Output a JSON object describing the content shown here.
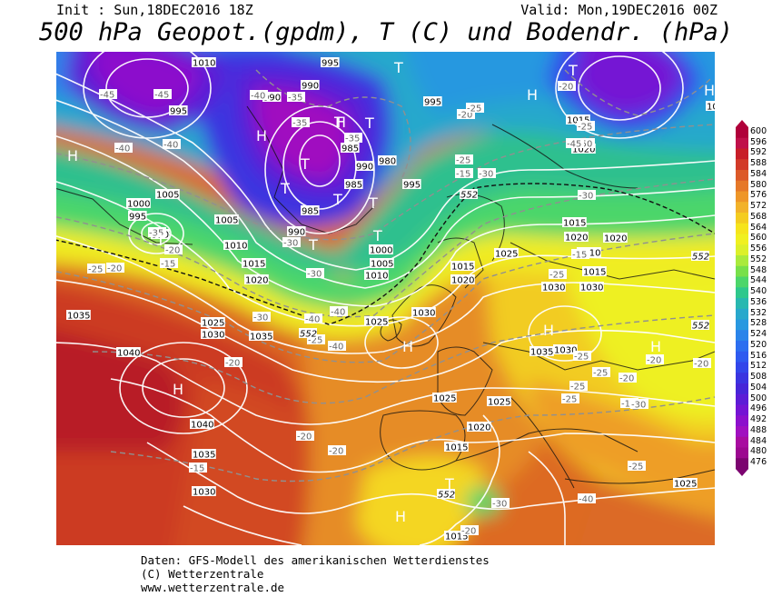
{
  "header": {
    "init": "Init : Sun,18DEC2016 18Z",
    "valid": "Valid: Mon,19DEC2016 00Z",
    "title": "500 hPa Geopot.(gpdm), T (C) und Bodendr. (hPa)"
  },
  "footer": {
    "line1": "Daten: GFS-Modell des amerikanischen Wetterdienstes",
    "line2": "(C) Wetterzentrale",
    "line3": "www.wetterzentrale.de"
  },
  "legend": {
    "values": [
      "600",
      "596",
      "592",
      "588",
      "584",
      "580",
      "576",
      "572",
      "568",
      "564",
      "560",
      "556",
      "552",
      "548",
      "544",
      "540",
      "536",
      "532",
      "528",
      "524",
      "520",
      "516",
      "512",
      "508",
      "504",
      "500",
      "496",
      "492",
      "488",
      "484",
      "480",
      "476"
    ],
    "colors": [
      "#b0003a",
      "#c0104a",
      "#c81e28",
      "#d23a28",
      "#dc5a28",
      "#e67828",
      "#ee9628",
      "#f2b22a",
      "#f4cc20",
      "#f6e41c",
      "#f0f020",
      "#dcf02a",
      "#aaea3c",
      "#78e04a",
      "#4cd66a",
      "#2ec88c",
      "#28b8b0",
      "#28a8cc",
      "#2898e0",
      "#2a84ea",
      "#2c6ef0",
      "#2e5af0",
      "#3246ea",
      "#3a34e0",
      "#4626d8",
      "#5c1cd6",
      "#7414d4",
      "#8c10cc",
      "#a010c0",
      "#a80ca0",
      "#9c0890",
      "#7c0470"
    ]
  },
  "map": {
    "pressure_labels": [
      {
        "t": "1010"
      },
      {
        "t": "995"
      },
      {
        "t": "990"
      },
      {
        "t": "990"
      },
      {
        "t": "995"
      },
      {
        "t": "995"
      },
      {
        "t": "985"
      },
      {
        "t": "980"
      },
      {
        "t": "990"
      },
      {
        "t": "985"
      },
      {
        "t": "995"
      },
      {
        "t": "1005"
      },
      {
        "t": "1000"
      },
      {
        "t": "995"
      },
      {
        "t": "990"
      },
      {
        "t": "1005"
      },
      {
        "t": "1010"
      },
      {
        "t": "985"
      },
      {
        "t": "990"
      },
      {
        "t": "1000"
      },
      {
        "t": "1015"
      },
      {
        "t": "1005"
      },
      {
        "t": "1010"
      },
      {
        "t": "1020"
      },
      {
        "t": "1015"
      },
      {
        "t": "1020"
      },
      {
        "t": "1025"
      },
      {
        "t": "1030"
      },
      {
        "t": "1035"
      },
      {
        "t": "1025"
      },
      {
        "t": "1030"
      },
      {
        "t": "1040"
      },
      {
        "t": "1035"
      },
      {
        "t": "1040"
      },
      {
        "t": "1035"
      },
      {
        "t": "1030"
      },
      {
        "t": "1025"
      },
      {
        "t": "1015"
      },
      {
        "t": "1020"
      },
      {
        "t": "1025"
      },
      {
        "t": "1030"
      },
      {
        "t": "1030"
      },
      {
        "t": "1035"
      },
      {
        "t": "1030"
      },
      {
        "t": "1025"
      },
      {
        "t": "1015"
      },
      {
        "t": "1020"
      },
      {
        "t": "1010"
      },
      {
        "t": "1015"
      },
      {
        "t": "1020"
      },
      {
        "t": "1015"
      },
      {
        "t": "1020"
      },
      {
        "t": "1035"
      },
      {
        "t": "1025"
      },
      {
        "t": "1015"
      }
    ],
    "temp_labels": [
      {
        "t": "-45"
      },
      {
        "t": "-45"
      },
      {
        "t": "-40"
      },
      {
        "t": "-40"
      },
      {
        "t": "-40"
      },
      {
        "t": "-35"
      },
      {
        "t": "-35"
      },
      {
        "t": "-35"
      },
      {
        "t": "-30"
      },
      {
        "t": "-30"
      },
      {
        "t": "-40"
      },
      {
        "t": "-40"
      },
      {
        "t": "-40"
      },
      {
        "t": "-25"
      },
      {
        "t": "-20"
      },
      {
        "t": "-25"
      },
      {
        "t": "-25"
      },
      {
        "t": "-30"
      },
      {
        "t": "-15"
      },
      {
        "t": "-15"
      },
      {
        "t": "-20"
      },
      {
        "t": "-15"
      },
      {
        "t": "-25"
      },
      {
        "t": "-20"
      },
      {
        "t": "-35"
      },
      {
        "t": "-30"
      },
      {
        "t": "-25"
      },
      {
        "t": "-20"
      },
      {
        "t": "-20"
      },
      {
        "t": "-20"
      },
      {
        "t": "-15"
      },
      {
        "t": "-25"
      },
      {
        "t": "-25"
      },
      {
        "t": "-25"
      },
      {
        "t": "-20"
      },
      {
        "t": "-20"
      },
      {
        "t": "-15"
      },
      {
        "t": "-25"
      },
      {
        "t": "-20"
      },
      {
        "t": "-30"
      },
      {
        "t": "-25"
      },
      {
        "t": "-30"
      },
      {
        "t": "-20"
      },
      {
        "t": "-25"
      },
      {
        "t": "-50"
      },
      {
        "t": "-45"
      },
      {
        "t": "-40"
      },
      {
        "t": "-30"
      },
      {
        "t": "-20"
      }
    ],
    "highs": [
      "H",
      "H",
      "H",
      "H",
      "H",
      "H",
      "H",
      "H",
      "H",
      "H"
    ],
    "lows": [
      "T",
      "T",
      "T",
      "T",
      "T",
      "T",
      "T",
      "T",
      "T",
      "T",
      "T",
      "T"
    ],
    "geopot_labels": [
      "552",
      "552",
      "552",
      "552",
      "552"
    ]
  }
}
